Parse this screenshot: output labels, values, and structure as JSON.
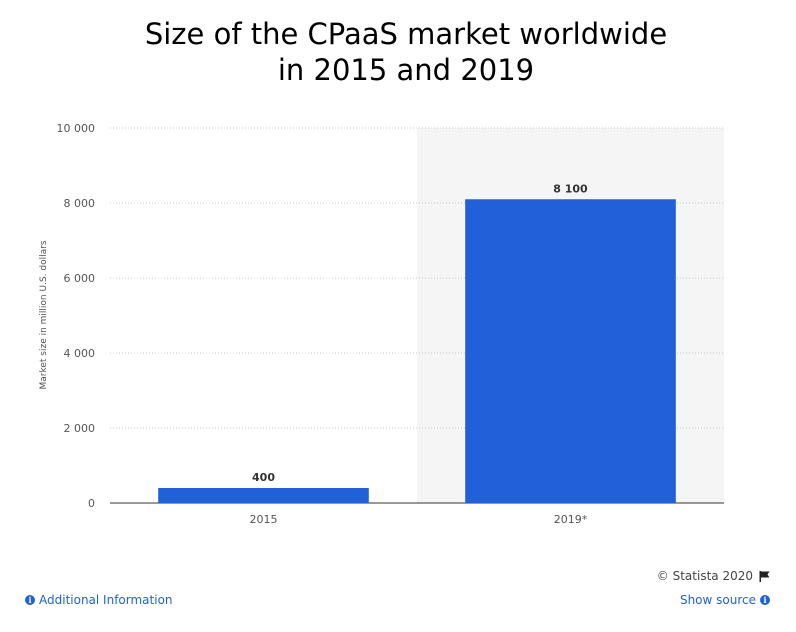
{
  "title_line1": "Size of the CPaaS market worldwide",
  "title_line2": "in 2015 and 2019",
  "chart_data": {
    "type": "bar",
    "categories": [
      "2015",
      "2019*"
    ],
    "values": [
      400,
      8100
    ],
    "value_labels": [
      "400",
      "8 100"
    ],
    "ylabel": "Market size in million U.S. dollars",
    "ylim": [
      0,
      10000
    ],
    "yticks": [
      0,
      2000,
      4000,
      6000,
      8000,
      10000
    ],
    "ytick_labels": [
      "0",
      "2 000",
      "4 000",
      "6 000",
      "8 000",
      "10 000"
    ],
    "bar_color": "#2160d8",
    "highlight_category": "2019*",
    "highlight_color": "#f5f5f5",
    "grid": true
  },
  "footer": {
    "credit": "© Statista 2020",
    "additional_info": "Additional Information",
    "show_source": "Show source"
  },
  "icons": {
    "flag": "flag-icon",
    "info": "info-icon"
  }
}
